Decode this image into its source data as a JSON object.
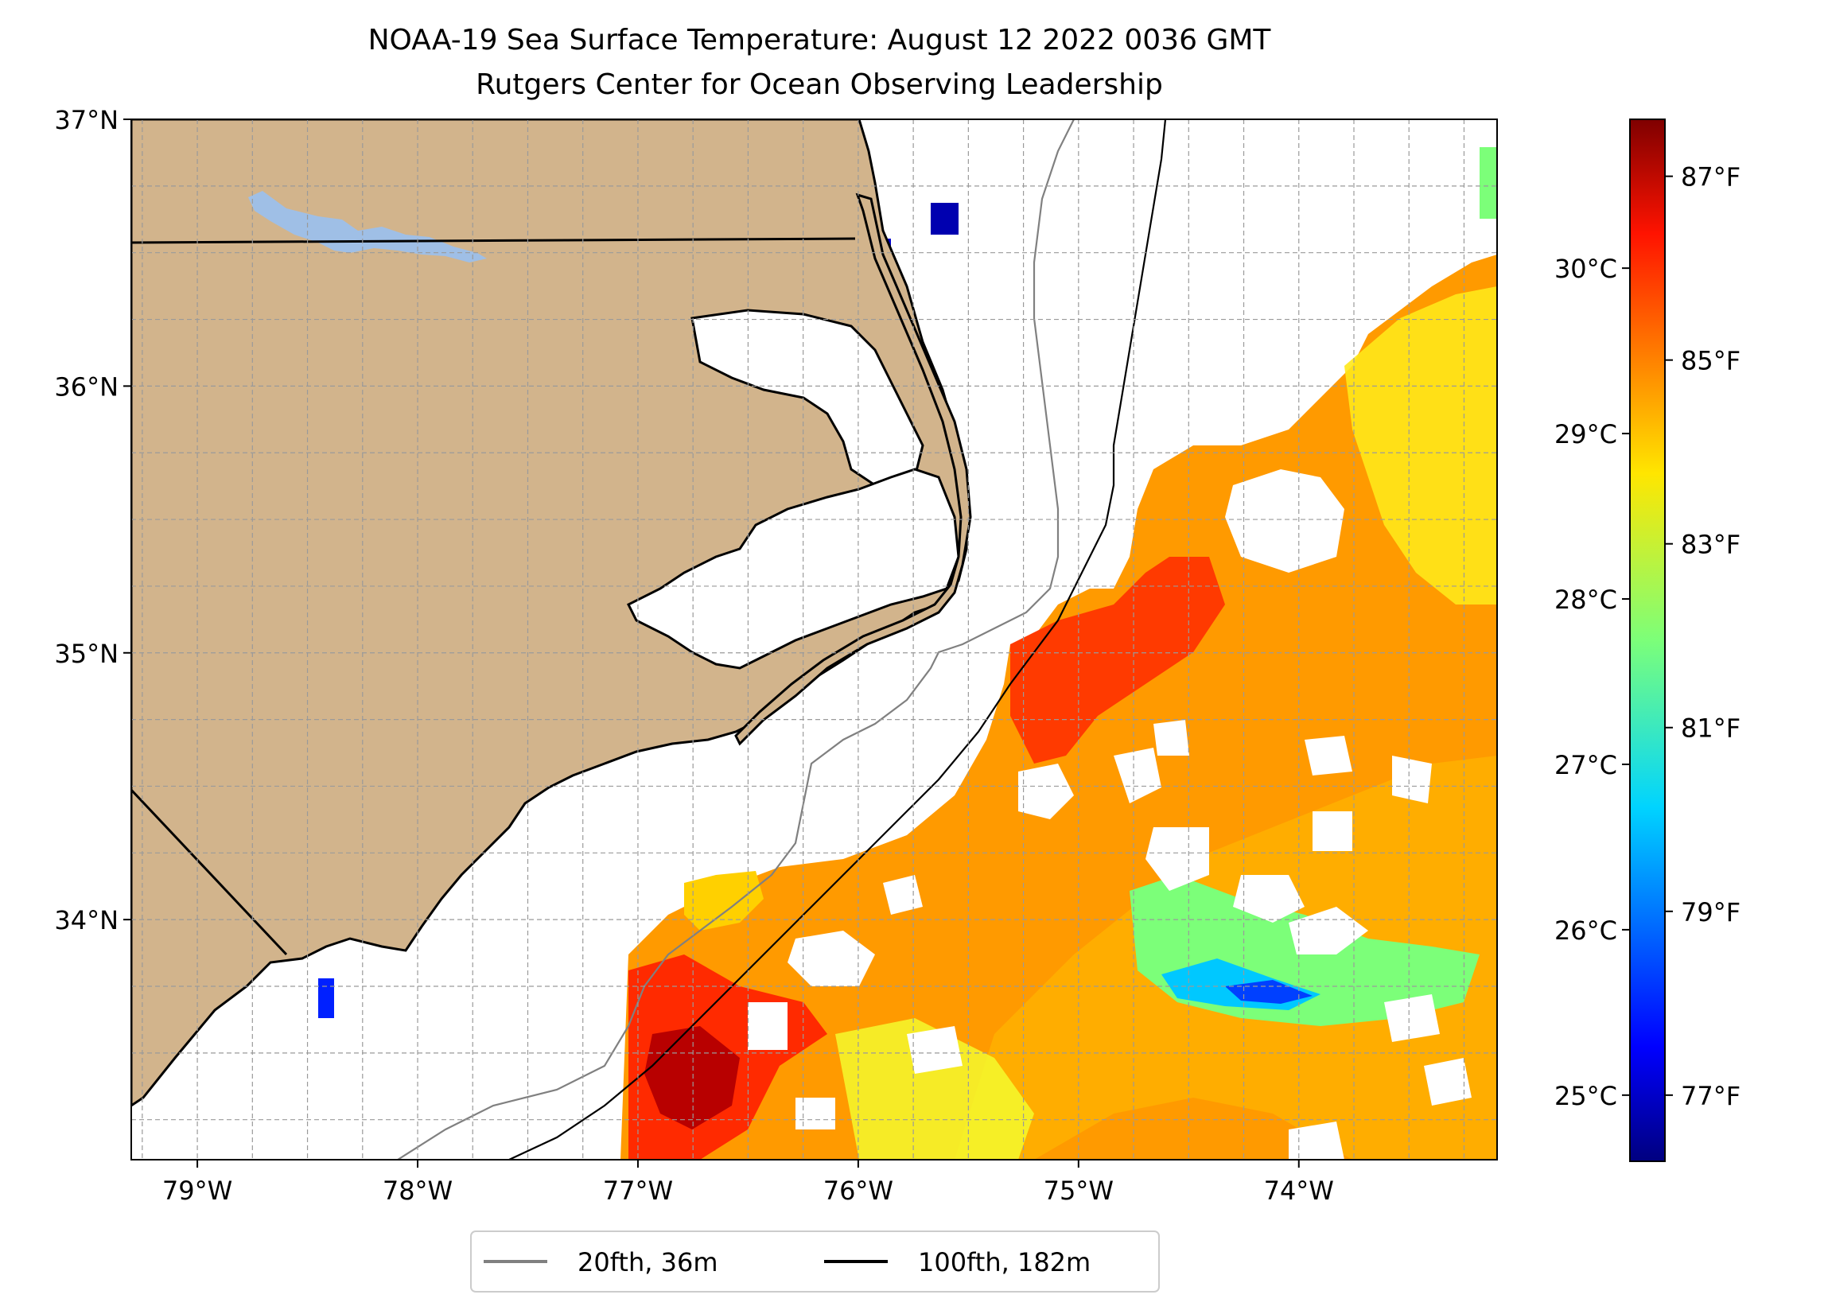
{
  "title": {
    "line1": "NOAA-19 Sea Surface Temperature: August 12 2022 0036 GMT",
    "line2": "Rutgers Center for Ocean Observing Leadership"
  },
  "map": {
    "lon_range": [
      -79.3,
      -73.1
    ],
    "lat_range": [
      33.1,
      37.0
    ],
    "lat_ticks": [
      {
        "value": 37,
        "label": "37°N"
      },
      {
        "value": 36,
        "label": "36°N"
      },
      {
        "value": 35,
        "label": "35°N"
      },
      {
        "value": 34,
        "label": "34°N"
      }
    ],
    "lon_ticks": [
      {
        "value": -79,
        "label": "79°W"
      },
      {
        "value": -78,
        "label": "78°W"
      },
      {
        "value": -77,
        "label": "77°W"
      },
      {
        "value": -76,
        "label": "76°W"
      },
      {
        "value": -75,
        "label": "75°W"
      },
      {
        "value": -74,
        "label": "74°W"
      }
    ],
    "grid": true,
    "land_color": "#d2b48c",
    "lake_color": "#9fbfe6",
    "contour_colors": {
      "isobath_20fth": "#808080",
      "isobath_100fth": "#000000"
    }
  },
  "colorbar": {
    "colormap": "jet",
    "celsius_range": [
      24.6,
      30.9
    ],
    "celsius_ticks": [
      {
        "value": 30,
        "label": "30°C"
      },
      {
        "value": 29,
        "label": "29°C"
      },
      {
        "value": 28,
        "label": "28°C"
      },
      {
        "value": 27,
        "label": "27°C"
      },
      {
        "value": 26,
        "label": "26°C"
      },
      {
        "value": 25,
        "label": "25°C"
      }
    ],
    "fahrenheit_ticks": [
      {
        "value": 87,
        "label": "87°F"
      },
      {
        "value": 85,
        "label": "85°F"
      },
      {
        "value": 83,
        "label": "83°F"
      },
      {
        "value": 81,
        "label": "81°F"
      },
      {
        "value": 79,
        "label": "79°F"
      },
      {
        "value": 77,
        "label": "77°F"
      }
    ]
  },
  "legend": {
    "items": [
      {
        "label": "20fth, 36m",
        "color": "#808080"
      },
      {
        "label": "100fth, 182m",
        "color": "#000000"
      }
    ]
  }
}
